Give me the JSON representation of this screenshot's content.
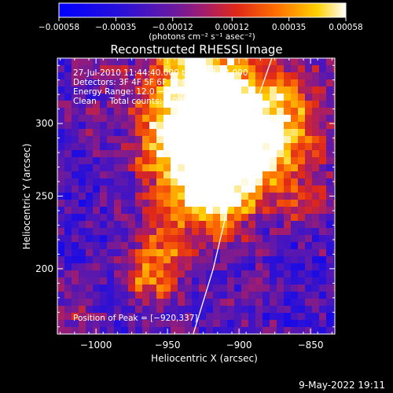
{
  "chart_data": {
    "type": "heatmap",
    "title": "Reconstructed RHESSI Image",
    "xlabel": "Heliocentric X (arcsec)",
    "ylabel": "Heliocentric Y (arcsec)",
    "xlim": [
      -1027,
      -833
    ],
    "ylim": [
      155,
      345
    ],
    "x_ticks": [
      -1000,
      -950,
      -900,
      -850
    ],
    "y_ticks": [
      200,
      250,
      300
    ],
    "x_tick_labels": [
      "−1000",
      "−950",
      "−900",
      "−850"
    ],
    "y_tick_labels": [
      "200",
      "250",
      "300"
    ],
    "colorbar": {
      "min": -0.00058,
      "max": 0.00058,
      "ticks": [
        -0.00058,
        -0.00035,
        -0.00012,
        0.00012,
        0.00035,
        0.00058
      ],
      "tick_labels": [
        "−0.00058",
        "−0.00035",
        "−0.00012",
        "0.00012",
        "0.00035",
        "0.00058"
      ],
      "unit_label": "(photons cm⁻² s⁻¹ asec⁻²)"
    },
    "info_lines": [
      "27-Jul-2010 11:44:40.000 to 11:44:44.000",
      "Detectors: 3F 4F 5F 6F 7F 8F, Att 0",
      "Energy Range: 12.0 − 25.0 keV",
      "Clean     Total counts: 1.92E+03"
    ],
    "peak_label": "Position of Peak = [−920,337]",
    "peak_position": [
      -920,
      337
    ],
    "limb_curve": [
      [
        -932,
        155
      ],
      [
        -918,
        200
      ],
      [
        -906,
        250
      ],
      [
        -893,
        300
      ],
      [
        -877,
        345
      ]
    ],
    "timestamp": "9-May-2022 19:11",
    "colors": {
      "background": "#000000",
      "text": "#ffffff",
      "limb": "#ffffff"
    }
  }
}
